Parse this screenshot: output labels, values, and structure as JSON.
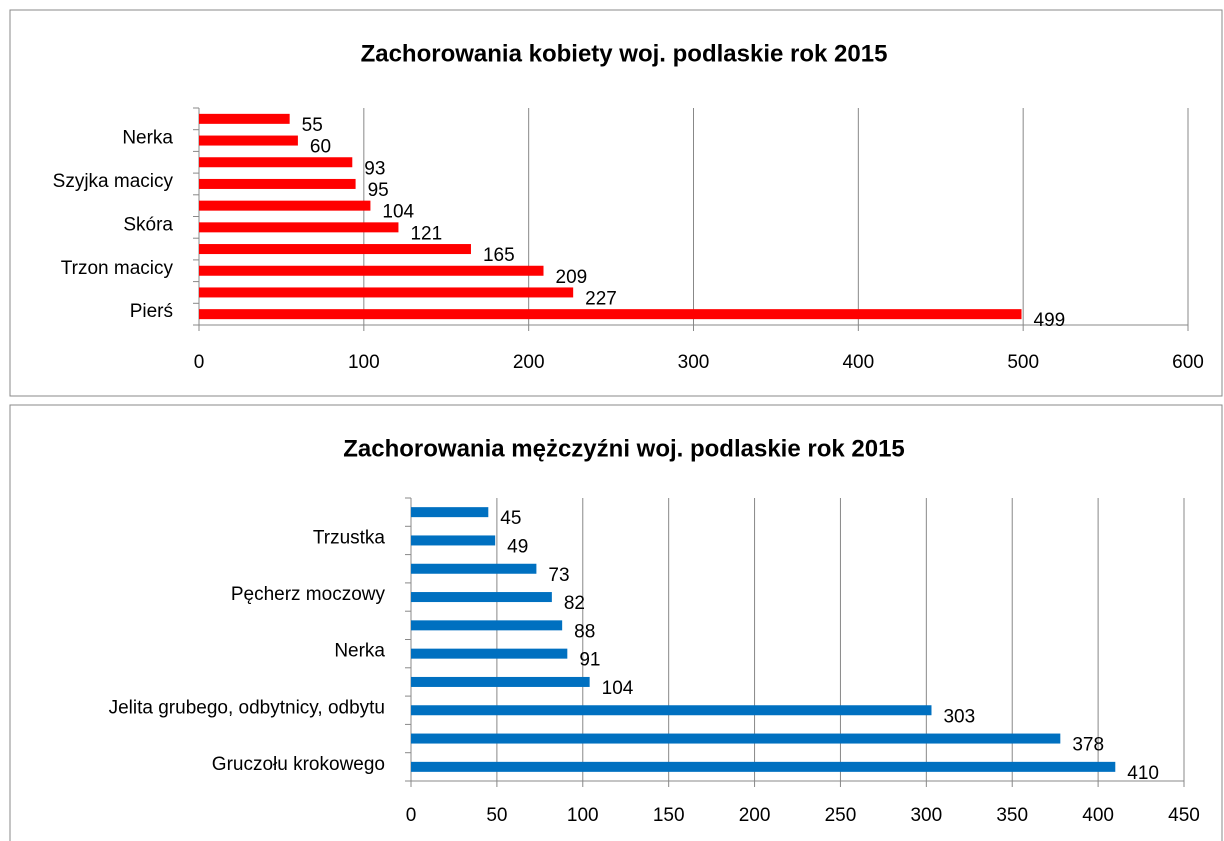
{
  "chart_data": [
    {
      "type": "bar",
      "orientation": "horizontal",
      "title": "Zachorowania kobiety woj. podlaskie rok 2015",
      "categories": [
        null,
        "Nerka",
        null,
        "Szyjka macicy",
        null,
        "Skóra",
        null,
        "Trzon macicy",
        null,
        "Pierś"
      ],
      "values": [
        55,
        60,
        93,
        95,
        104,
        121,
        165,
        209,
        227,
        499
      ],
      "color": "#ff0000",
      "xlim": [
        0,
        600
      ],
      "xticks": [
        0,
        100,
        200,
        300,
        400,
        500,
        600
      ],
      "grid": true
    },
    {
      "type": "bar",
      "orientation": "horizontal",
      "title": "Zachorowania mężczyźni woj. podlaskie rok 2015",
      "categories": [
        null,
        "Trzustka",
        null,
        "Pęcherz moczowy",
        null,
        "Nerka",
        null,
        "Jelita grubego, odbytnicy, odbytu",
        null,
        "Gruczołu krokowego"
      ],
      "values": [
        45,
        49,
        73,
        82,
        88,
        91,
        104,
        303,
        378,
        410
      ],
      "color": "#0070c0",
      "xlim": [
        0,
        450
      ],
      "xticks": [
        0,
        50,
        100,
        150,
        200,
        250,
        300,
        350,
        400,
        450
      ],
      "grid": true
    }
  ]
}
